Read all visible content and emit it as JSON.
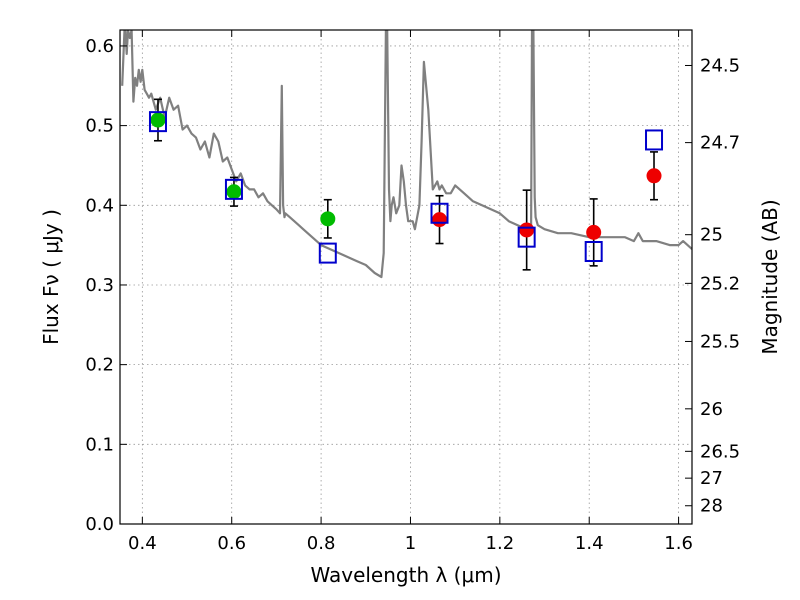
{
  "chart_data": {
    "type": "scatter",
    "title": "",
    "xlabel": "Wavelength  λ (μm)",
    "ylabel": "Flux  Fν  ( μJy )",
    "y2label": "Magnitude (AB)",
    "xlim": [
      0.35,
      1.63
    ],
    "ylim": [
      0.0,
      0.62
    ],
    "grid": true,
    "x_ticks": [
      {
        "value": 0.4,
        "label": "0.4"
      },
      {
        "value": 0.6,
        "label": "0.6"
      },
      {
        "value": 0.8,
        "label": "0.8"
      },
      {
        "value": 1.0,
        "label": "1"
      },
      {
        "value": 1.2,
        "label": "1.2"
      },
      {
        "value": 1.4,
        "label": "1.4"
      },
      {
        "value": 1.6,
        "label": "1.6"
      }
    ],
    "y_ticks": [
      {
        "value": 0.0,
        "label": "0.0"
      },
      {
        "value": 0.1,
        "label": "0.1"
      },
      {
        "value": 0.2,
        "label": "0.2"
      },
      {
        "value": 0.3,
        "label": "0.3"
      },
      {
        "value": 0.4,
        "label": "0.4"
      },
      {
        "value": 0.5,
        "label": "0.5"
      },
      {
        "value": 0.6,
        "label": "0.6"
      }
    ],
    "mag_ticks": [
      {
        "value": 24.5,
        "label": "24.5"
      },
      {
        "value": 24.7,
        "label": "24.7"
      },
      {
        "value": 25.0,
        "label": "25"
      },
      {
        "value": 25.2,
        "label": "25.2"
      },
      {
        "value": 25.5,
        "label": "25.5"
      },
      {
        "value": 26.0,
        "label": "26"
      },
      {
        "value": 26.5,
        "label": "26.5"
      },
      {
        "value": 27.0,
        "label": "27"
      },
      {
        "value": 28.0,
        "label": "28"
      }
    ],
    "colors": {
      "model": "#808080",
      "observed_optical": "#00bb00",
      "observed_nir": "#ee0000",
      "model_photometry": "#0000cc",
      "errorbar": "#000000",
      "grid": "#999999"
    },
    "series": [
      {
        "type": "line",
        "x": [
          0.355,
          0.36,
          0.362,
          0.365,
          0.368,
          0.372,
          0.376,
          0.38,
          0.384,
          0.388,
          0.392,
          0.396,
          0.4,
          0.405,
          0.41,
          0.415,
          0.42,
          0.43,
          0.44,
          0.45,
          0.46,
          0.47,
          0.48,
          0.49,
          0.5,
          0.51,
          0.52,
          0.53,
          0.54,
          0.55,
          0.56,
          0.57,
          0.58,
          0.59,
          0.6,
          0.61,
          0.62,
          0.63,
          0.64,
          0.65,
          0.66,
          0.67,
          0.68,
          0.69,
          0.7,
          0.708,
          0.712,
          0.715,
          0.718,
          0.72,
          0.73,
          0.74,
          0.75,
          0.76,
          0.77,
          0.78,
          0.8,
          0.82,
          0.84,
          0.86,
          0.88,
          0.9,
          0.92,
          0.935,
          0.94,
          0.945,
          0.948,
          0.952,
          0.955,
          0.958,
          0.962,
          0.968,
          0.975,
          0.98,
          0.985,
          0.99,
          0.995,
          1.0,
          1.005,
          1.01,
          1.02,
          1.025,
          1.03,
          1.04,
          1.05,
          1.06,
          1.065,
          1.07,
          1.075,
          1.08,
          1.09,
          1.1,
          1.12,
          1.14,
          1.16,
          1.18,
          1.2,
          1.22,
          1.24,
          1.26,
          1.27,
          1.272,
          1.275,
          1.278,
          1.28,
          1.285,
          1.3,
          1.33,
          1.36,
          1.4,
          1.44,
          1.48,
          1.5,
          1.51,
          1.52,
          1.55,
          1.58,
          1.6,
          1.61,
          1.63
        ],
        "y": [
          0.55,
          0.62,
          0.62,
          0.59,
          0.62,
          0.61,
          0.62,
          0.53,
          0.56,
          0.55,
          0.57,
          0.555,
          0.57,
          0.545,
          0.54,
          0.535,
          0.54,
          0.52,
          0.535,
          0.51,
          0.535,
          0.52,
          0.525,
          0.495,
          0.5,
          0.49,
          0.485,
          0.47,
          0.48,
          0.46,
          0.49,
          0.48,
          0.455,
          0.46,
          0.445,
          0.43,
          0.44,
          0.425,
          0.42,
          0.42,
          0.41,
          0.415,
          0.405,
          0.4,
          0.395,
          0.39,
          0.55,
          0.4,
          0.385,
          0.39,
          0.385,
          0.38,
          0.375,
          0.37,
          0.365,
          0.36,
          0.35,
          0.345,
          0.34,
          0.335,
          0.33,
          0.325,
          0.315,
          0.31,
          0.34,
          0.62,
          0.62,
          0.42,
          0.38,
          0.4,
          0.41,
          0.39,
          0.4,
          0.45,
          0.43,
          0.4,
          0.38,
          0.38,
          0.38,
          0.37,
          0.4,
          0.48,
          0.58,
          0.52,
          0.42,
          0.43,
          0.42,
          0.425,
          0.42,
          0.415,
          0.415,
          0.425,
          0.415,
          0.405,
          0.4,
          0.395,
          0.39,
          0.38,
          0.375,
          0.37,
          0.37,
          0.62,
          0.62,
          0.41,
          0.385,
          0.375,
          0.37,
          0.365,
          0.365,
          0.36,
          0.36,
          0.36,
          0.355,
          0.365,
          0.355,
          0.355,
          0.35,
          0.35,
          0.355,
          0.345
        ]
      },
      {
        "type": "scatter",
        "marker": "circle",
        "x": [
          0.435,
          0.605,
          0.815
        ],
        "y": [
          0.507,
          0.417,
          0.383
        ],
        "yerr": [
          0.026,
          0.018,
          0.024
        ]
      },
      {
        "type": "scatter",
        "marker": "circle",
        "x": [
          1.065,
          1.26,
          1.41,
          1.545
        ],
        "y": [
          0.382,
          0.369,
          0.366,
          0.437
        ],
        "yerr": [
          0.03,
          0.05,
          0.042,
          0.03
        ]
      },
      {
        "type": "scatter",
        "marker": "square-open",
        "x": [
          0.435,
          0.605,
          0.815,
          1.065,
          1.26,
          1.41,
          1.545
        ],
        "y": [
          0.505,
          0.42,
          0.34,
          0.39,
          0.36,
          0.342,
          0.482
        ]
      }
    ]
  }
}
